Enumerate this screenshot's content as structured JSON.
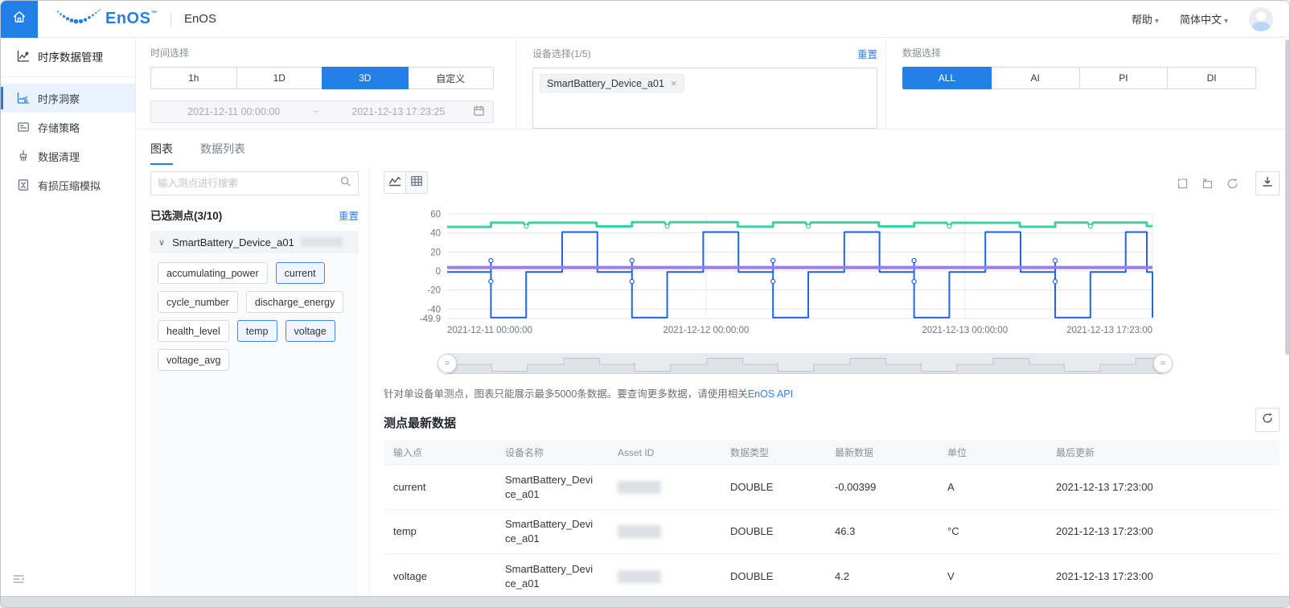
{
  "topbar": {
    "product": "EnOS",
    "tm": "™",
    "app_title": "EnOS",
    "help": "帮助",
    "language": "简体中文"
  },
  "sidebar": {
    "items": [
      {
        "label": "时序数据管理",
        "icon": "chart-line-icon",
        "active": false,
        "header": true
      },
      {
        "label": "时序洞察",
        "icon": "chart-insight-icon",
        "active": true,
        "header": false
      },
      {
        "label": "存储策略",
        "icon": "storage-icon",
        "active": false,
        "header": false
      },
      {
        "label": "数据清理",
        "icon": "clean-icon",
        "active": false,
        "header": false
      },
      {
        "label": "有损压缩模拟",
        "icon": "compress-icon",
        "active": false,
        "header": false
      }
    ]
  },
  "filters": {
    "time": {
      "label": "时间选择",
      "options": [
        "1h",
        "1D",
        "3D",
        "自定义"
      ],
      "selected_index": 2,
      "start": "2021-12-11 00:00:00",
      "separator": "~",
      "end": "2021-12-13 17:23:25"
    },
    "device": {
      "label": "设备选择(1/5)",
      "reset": "重置",
      "tags": [
        "SmartBattery_Device_a01"
      ]
    },
    "data": {
      "label": "数据选择",
      "options": [
        "ALL",
        "AI",
        "PI",
        "DI"
      ],
      "selected_index": 0
    }
  },
  "tabs": {
    "items": [
      {
        "label": "图表",
        "active": true
      },
      {
        "label": "数据列表",
        "active": false
      }
    ]
  },
  "points_panel": {
    "search_placeholder": "输入测点进行搜索",
    "selected_label": "已选测点(3/10)",
    "reset": "重置",
    "group_name": "SmartBattery_Device_a01",
    "tags": [
      {
        "label": "accumulating_power",
        "selected": false
      },
      {
        "label": "current",
        "selected": true
      },
      {
        "label": "cycle_number",
        "selected": false
      },
      {
        "label": "discharge_energy",
        "selected": false
      },
      {
        "label": "health_level",
        "selected": false
      },
      {
        "label": "temp",
        "selected": true
      },
      {
        "label": "voltage",
        "selected": true
      },
      {
        "label": "voltage_avg",
        "selected": false
      }
    ]
  },
  "chart_note": {
    "text": "针对单设备单测点，图表只能展示最多5000条数据。要查询更多数据，请使用相关",
    "link": "EnOS API"
  },
  "latest_table": {
    "title": "测点最新数据",
    "columns": [
      "输入点",
      "设备名称",
      "Asset ID",
      "数据类型",
      "最新数据",
      "单位",
      "最后更新"
    ],
    "rows": [
      {
        "point": "current",
        "device": "SmartBattery_Device_a01",
        "asset_redacted": true,
        "data_type": "DOUBLE",
        "latest": "-0.00399",
        "unit": "A",
        "updated": "2021-12-13 17:23:00"
      },
      {
        "point": "temp",
        "device": "SmartBattery_Device_a01",
        "asset_redacted": true,
        "data_type": "DOUBLE",
        "latest": "46.3",
        "unit": "°C",
        "updated": "2021-12-13 17:23:00"
      },
      {
        "point": "voltage",
        "device": "SmartBattery_Device_a01",
        "asset_redacted": true,
        "data_type": "DOUBLE",
        "latest": "4.2",
        "unit": "V",
        "updated": "2021-12-13 17:23:00"
      }
    ]
  },
  "chart_data": {
    "type": "line",
    "x_range": [
      "2021-12-11 00:00:00",
      "2021-12-13 17:23:25"
    ],
    "x_ticks": {
      "labels": [
        "2021-12-11 00:00:00",
        "2021-12-12 00:00:00",
        "2021-12-13 00:00:00",
        "2021-12-13 17:23:00"
      ],
      "fractions": [
        0,
        0.367,
        0.734,
        1
      ],
      "anchors": [
        "start",
        "middle",
        "middle",
        "end"
      ]
    },
    "ylim": [
      -49.9,
      60
    ],
    "y_ticks": [
      60,
      40,
      20,
      0,
      -20,
      -40,
      -49.9
    ],
    "series": [
      {
        "name": "temp",
        "unit": "°C",
        "color": "#3ecfa4",
        "width": 3,
        "segments": [
          [
            0,
            0.062,
            46.4
          ],
          [
            0.062,
            0.212,
            50.8
          ],
          [
            0.212,
            0.262,
            46.9
          ],
          [
            0.262,
            0.412,
            51.3
          ],
          [
            0.412,
            0.462,
            46.6
          ],
          [
            0.462,
            0.612,
            51.0
          ],
          [
            0.612,
            0.662,
            46.9
          ],
          [
            0.662,
            0.812,
            50.7
          ],
          [
            0.812,
            0.862,
            46.5
          ],
          [
            0.862,
            0.992,
            50.9
          ],
          [
            0.992,
            1,
            47.2
          ]
        ],
        "dips": [
          0.112,
          0.312,
          0.512,
          0.712,
          0.912
        ],
        "dip_value": 47.0
      },
      {
        "name": "current",
        "unit": "A",
        "color": "#2563e8",
        "width": 2,
        "segments": [
          [
            0,
            0.062,
            -1
          ],
          [
            0.062,
            0.112,
            -49
          ],
          [
            0.112,
            0.163,
            -1
          ],
          [
            0.163,
            0.213,
            41
          ],
          [
            0.213,
            0.262,
            -1
          ],
          [
            0.262,
            0.312,
            -49
          ],
          [
            0.312,
            0.363,
            -1
          ],
          [
            0.363,
            0.413,
            41
          ],
          [
            0.413,
            0.462,
            -1
          ],
          [
            0.462,
            0.512,
            -49
          ],
          [
            0.512,
            0.563,
            -1
          ],
          [
            0.563,
            0.613,
            41
          ],
          [
            0.613,
            0.662,
            -1
          ],
          [
            0.662,
            0.712,
            -49
          ],
          [
            0.712,
            0.763,
            -1
          ],
          [
            0.763,
            0.813,
            41
          ],
          [
            0.813,
            0.862,
            -1
          ],
          [
            0.862,
            0.912,
            -49
          ],
          [
            0.912,
            0.962,
            -1
          ],
          [
            0.962,
            0.992,
            41
          ],
          [
            0.992,
            1,
            -1
          ],
          [
            1,
            1,
            -49
          ]
        ],
        "spikes": [
          0.062,
          0.262,
          0.462,
          0.662,
          0.862
        ],
        "spike_amp": 11
      },
      {
        "name": "voltage",
        "unit": "V",
        "color": "#9b7df0",
        "width": 4,
        "segments": [
          [
            0,
            1,
            3.7
          ]
        ]
      }
    ]
  },
  "icons": {
    "caret-down": "▾",
    "chevron-down": "∨",
    "close": "×",
    "equals": "="
  }
}
